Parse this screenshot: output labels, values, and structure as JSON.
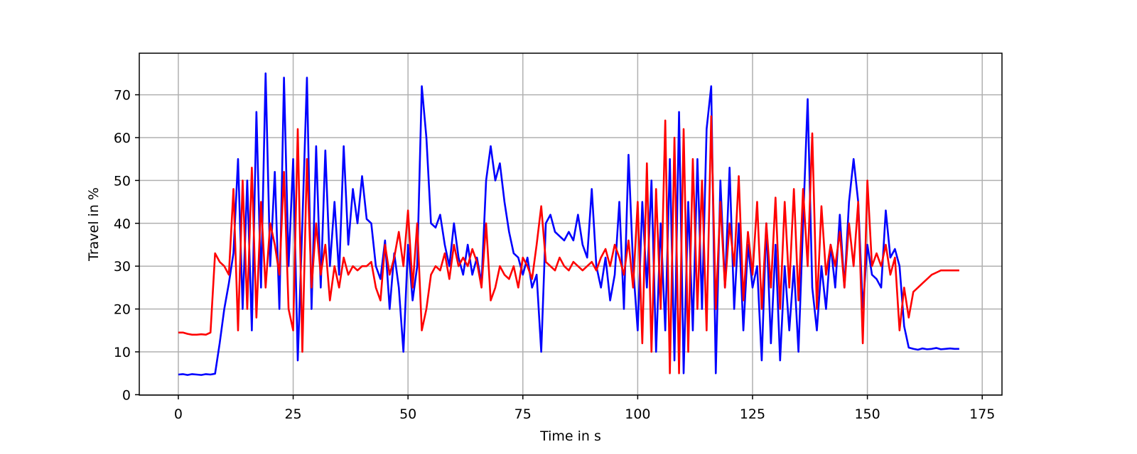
{
  "chart_data": {
    "type": "line",
    "x_label": "Time in s",
    "y_label": "Travel in %",
    "x": [
      0,
      1,
      2,
      3,
      4,
      5,
      6,
      7,
      8,
      9,
      10,
      11,
      12,
      13,
      14,
      15,
      16,
      17,
      18,
      19,
      20,
      21,
      22,
      23,
      24,
      25,
      26,
      27,
      28,
      29,
      30,
      31,
      32,
      33,
      34,
      35,
      36,
      37,
      38,
      39,
      40,
      41,
      42,
      43,
      44,
      45,
      46,
      47,
      48,
      49,
      50,
      51,
      52,
      53,
      54,
      55,
      56,
      57,
      58,
      59,
      60,
      61,
      62,
      63,
      64,
      65,
      66,
      67,
      68,
      69,
      70,
      71,
      72,
      73,
      74,
      75,
      76,
      77,
      78,
      79,
      80,
      81,
      82,
      83,
      84,
      85,
      86,
      87,
      88,
      89,
      90,
      91,
      92,
      93,
      94,
      95,
      96,
      97,
      98,
      99,
      100,
      101,
      102,
      103,
      104,
      105,
      106,
      107,
      108,
      109,
      110,
      111,
      112,
      113,
      114,
      115,
      116,
      117,
      118,
      119,
      120,
      121,
      122,
      123,
      124,
      125,
      126,
      127,
      128,
      129,
      130,
      131,
      132,
      133,
      134,
      135,
      136,
      137,
      138,
      139,
      140,
      141,
      142,
      143,
      144,
      145,
      146,
      147,
      148,
      149,
      150,
      151,
      152,
      153,
      154,
      155,
      156,
      157,
      158,
      159,
      160,
      161,
      162,
      163,
      164,
      165,
      166,
      167,
      168,
      169,
      170
    ],
    "series": [
      {
        "color": "#0000ff",
        "values": [
          4.7,
          4.8,
          4.6,
          4.8,
          4.7,
          4.6,
          4.8,
          4.7,
          4.9,
          12,
          20,
          26,
          33,
          55,
          20,
          50,
          15,
          66,
          25,
          75,
          30,
          52,
          20,
          74,
          30,
          55,
          8,
          40,
          74,
          20,
          58,
          25,
          57,
          30,
          45,
          28,
          58,
          35,
          48,
          40,
          51,
          41,
          40,
          30,
          27,
          36,
          20,
          33,
          25,
          10,
          35,
          22,
          30,
          72,
          60,
          40,
          39,
          42,
          35,
          30,
          40,
          32,
          28,
          35,
          28,
          32,
          26,
          50,
          58,
          50,
          54,
          45,
          38,
          33,
          32,
          28,
          32,
          25,
          28,
          10,
          40,
          42,
          38,
          37,
          36,
          38,
          36,
          42,
          35,
          32,
          48,
          30,
          25,
          32,
          22,
          28,
          45,
          20,
          56,
          30,
          15,
          45,
          25,
          50,
          10,
          40,
          15,
          55,
          8,
          66,
          5,
          45,
          15,
          55,
          20,
          62,
          72,
          5,
          50,
          25,
          53,
          20,
          40,
          15,
          35,
          25,
          30,
          8,
          40,
          12,
          35,
          8,
          30,
          15,
          30,
          10,
          40,
          69,
          25,
          15,
          30,
          20,
          35,
          25,
          42,
          25,
          45,
          55,
          45,
          20,
          35,
          28,
          27,
          25,
          43,
          32,
          34,
          30,
          16,
          11,
          10.7,
          10.5,
          10.8,
          10.6,
          10.7,
          10.9,
          10.6,
          10.7,
          10.8,
          10.7,
          10.7
        ]
      },
      {
        "color": "#ff0000",
        "values": [
          14.5,
          14.5,
          14.2,
          14,
          14,
          14.1,
          14,
          14.5,
          33,
          31,
          30,
          28,
          48,
          15,
          50,
          20,
          53,
          18,
          45,
          25,
          40,
          35,
          28,
          52,
          20,
          15,
          62,
          10,
          55,
          25,
          40,
          28,
          35,
          22,
          30,
          25,
          32,
          28,
          30,
          29,
          30,
          30,
          31,
          25,
          22,
          35,
          28,
          32,
          38,
          30,
          43,
          25,
          40,
          15,
          20,
          28,
          30,
          29,
          33,
          27,
          35,
          30,
          32,
          30,
          34,
          31,
          25,
          40,
          22,
          25,
          30,
          28,
          27,
          30,
          25,
          32,
          30,
          27,
          35,
          44,
          31,
          30,
          29,
          32,
          30,
          29,
          31,
          30,
          29,
          30,
          31,
          29,
          32,
          34,
          30,
          35,
          32,
          28,
          36,
          25,
          45,
          12,
          54,
          10,
          48,
          20,
          64,
          5,
          60,
          5,
          62,
          10,
          55,
          20,
          50,
          15,
          65,
          20,
          45,
          25,
          40,
          30,
          51,
          22,
          38,
          28,
          45,
          20,
          40,
          25,
          46,
          20,
          45,
          25,
          48,
          22,
          48,
          30,
          61,
          20,
          44,
          28,
          35,
          30,
          38,
          25,
          40,
          30,
          45,
          12,
          50,
          30,
          33,
          30,
          35,
          28,
          32,
          15,
          25,
          18,
          24,
          25,
          26,
          27,
          28,
          28.5,
          29,
          29,
          29,
          29,
          29
        ]
      }
    ],
    "xlim": [
      -8.5,
      179.3
    ],
    "ylim": [
      -0.1,
      79.7
    ],
    "xticks": [
      0,
      25,
      50,
      75,
      100,
      125,
      150,
      175
    ],
    "yticks": [
      0,
      10,
      20,
      30,
      40,
      50,
      60,
      70
    ],
    "grid": true
  }
}
